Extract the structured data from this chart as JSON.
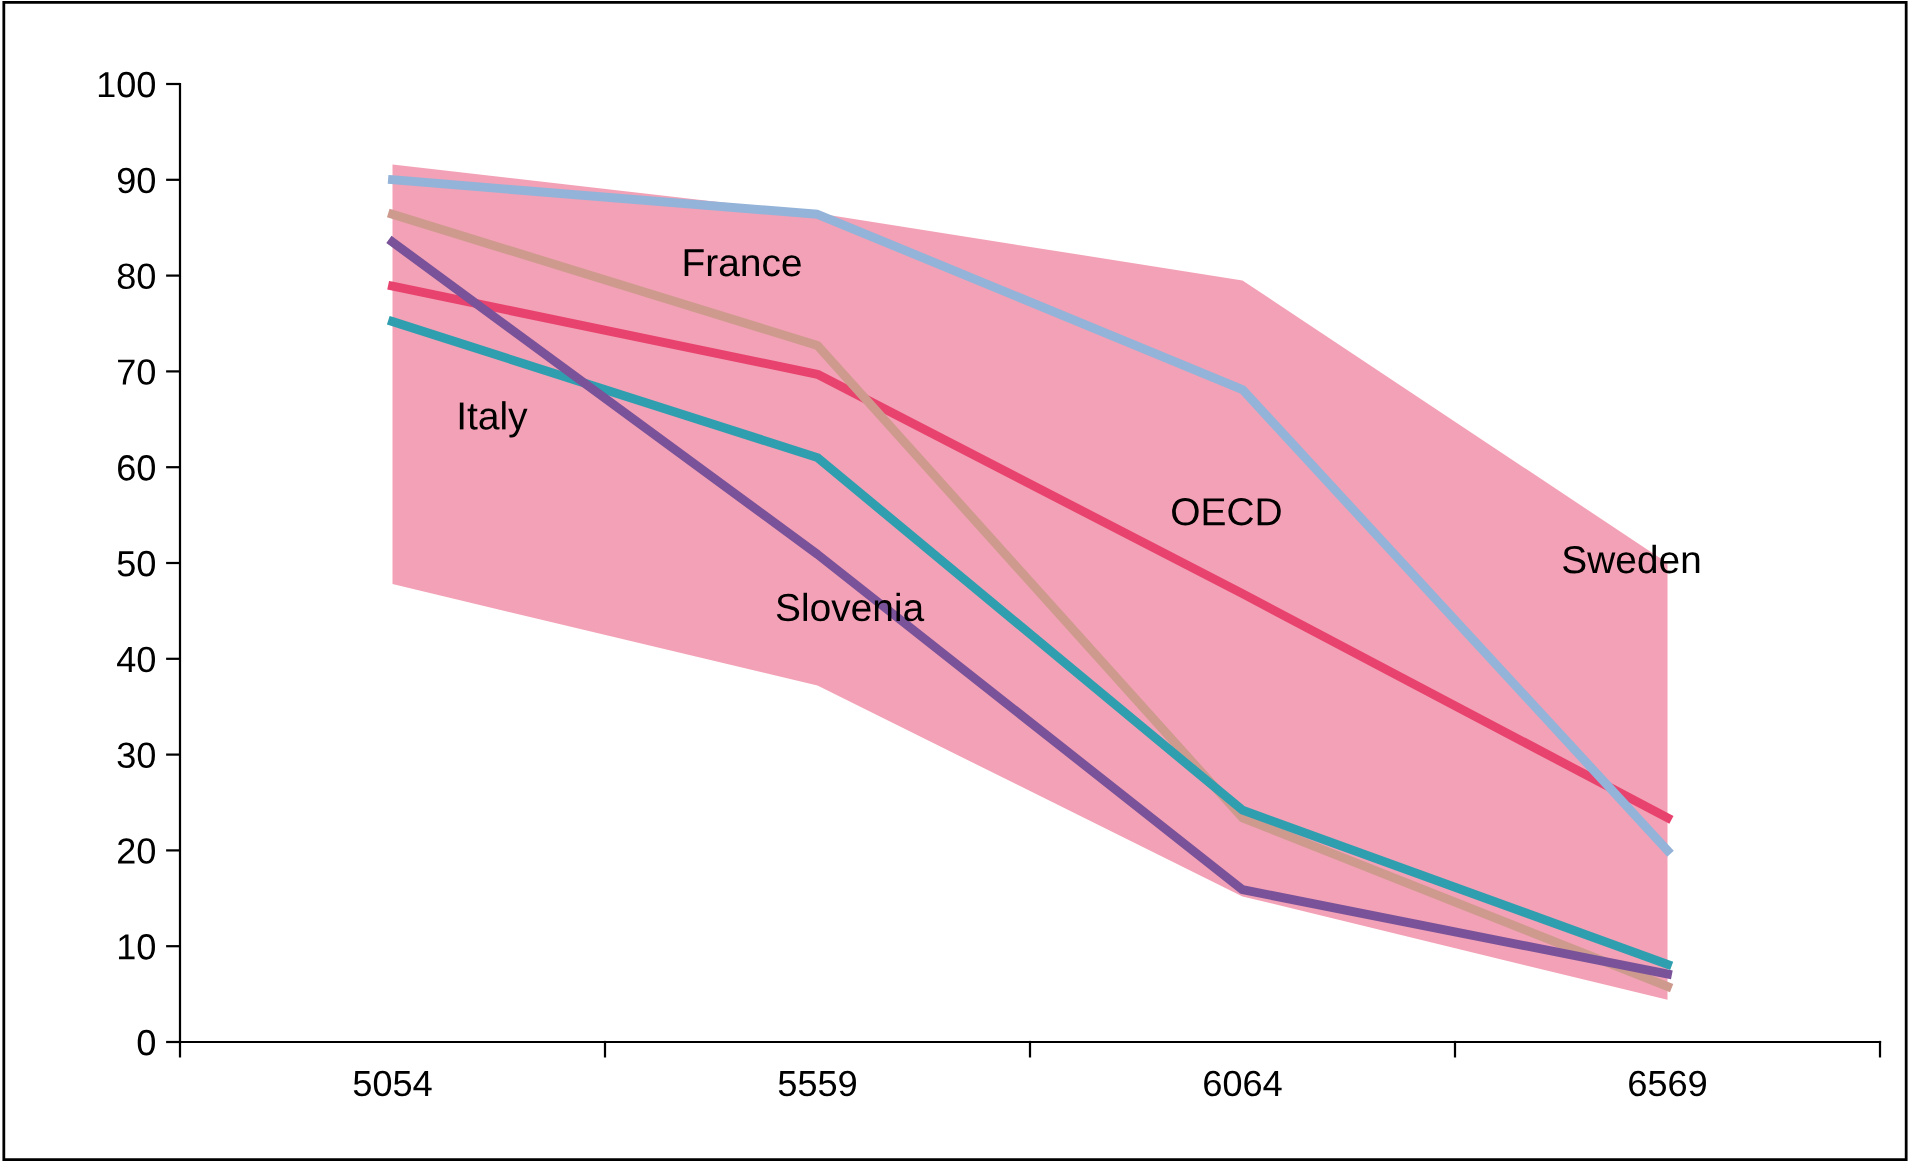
{
  "chart_data": {
    "type": "line",
    "categories": [
      "5054",
      "5559",
      "6064",
      "6569"
    ],
    "ylim": [
      0,
      100
    ],
    "yticks": [
      0,
      10,
      20,
      30,
      40,
      50,
      60,
      70,
      80,
      90,
      100
    ],
    "grid": false,
    "legend": false,
    "marker": "none",
    "line_style": "solid",
    "series": [
      {
        "name": "OECD",
        "color": "#e8436e",
        "values": [
          78.9,
          69.7,
          46.8,
          23.4
        ],
        "lower": [
          47.8,
          37.2,
          15.2,
          4.4
        ],
        "upper": [
          91.6,
          86.5,
          79.5,
          50.0
        ]
      },
      {
        "name": "Sweden",
        "color": "#94b3d9",
        "values": [
          90.0,
          86.4,
          68.1,
          20.0
        ]
      },
      {
        "name": "France",
        "color": "#cf9a8e",
        "values": [
          86.4,
          72.7,
          23.4,
          5.8
        ]
      },
      {
        "name": "Italy",
        "color": "#2f9fb0",
        "values": [
          75.2,
          61.0,
          24.2,
          8.1
        ]
      },
      {
        "name": "Slovenia",
        "color": "#7a5299",
        "values": [
          83.5,
          50.9,
          15.9,
          7.1
        ]
      }
    ]
  }
}
